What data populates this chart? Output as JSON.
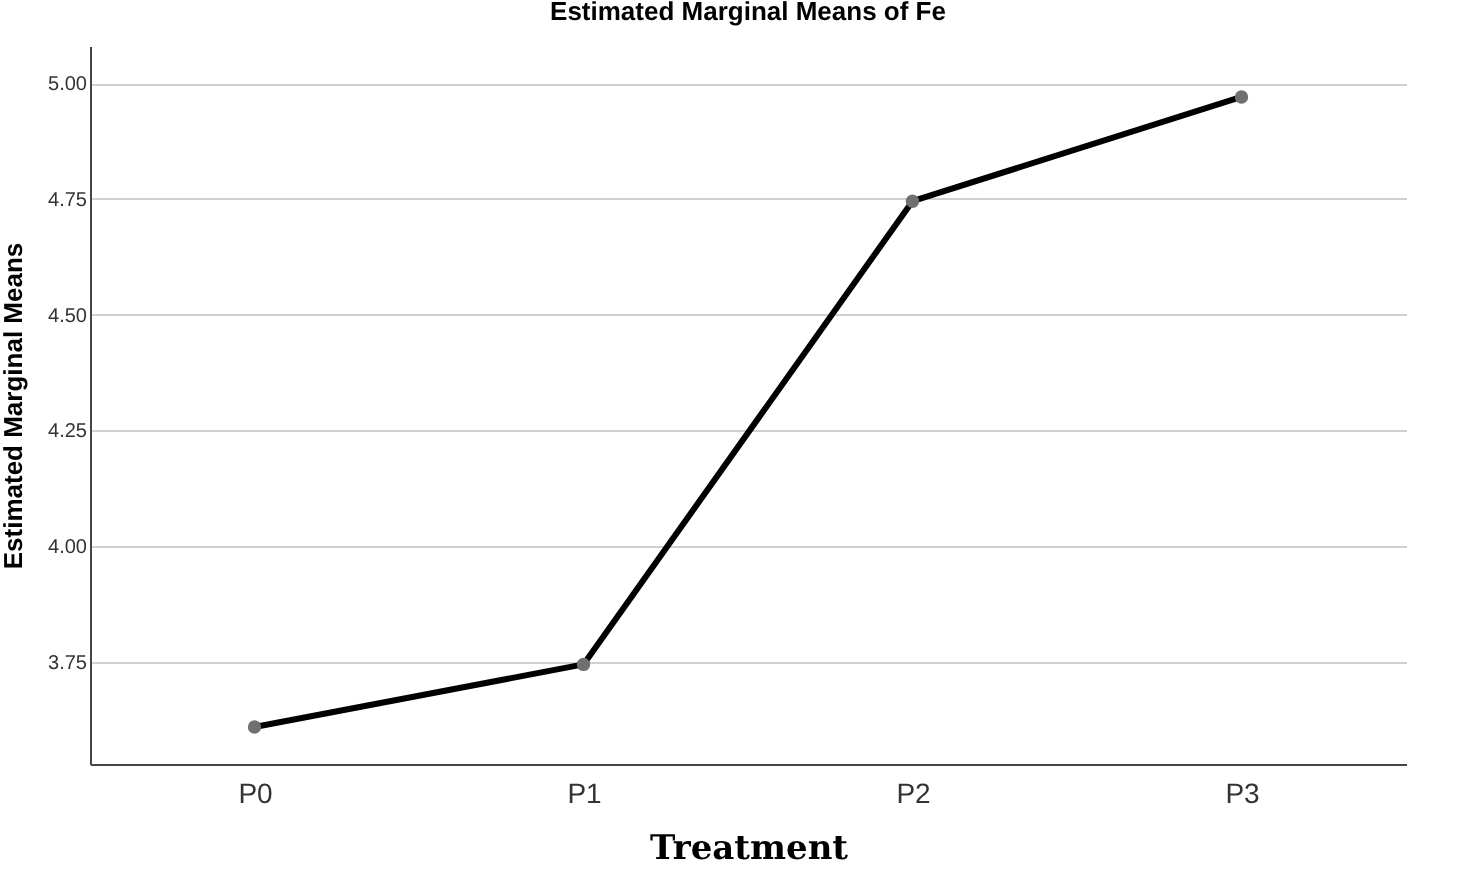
{
  "chart_data": {
    "type": "line",
    "title": "Estimated Marginal Means of Fe",
    "xlabel": "Treatment",
    "ylabel": "Estimated Marginal Means",
    "categories": [
      "P0",
      "P1",
      "P2",
      "P3"
    ],
    "series": [
      {
        "color": "#000000",
        "values": [
          3.61,
          3.745,
          4.745,
          4.97
        ]
      }
    ],
    "ylim": [
      3.53,
      5.08
    ],
    "yticks": [
      {
        "value": 3.75,
        "label": "3.75"
      },
      {
        "value": 4.0,
        "label": "4.00"
      },
      {
        "value": 4.25,
        "label": "4.25"
      },
      {
        "value": 4.5,
        "label": "4.50"
      },
      {
        "value": 4.75,
        "label": "4.75"
      },
      {
        "value": 5.0,
        "label": "5.00"
      }
    ],
    "grid": "y",
    "marker": "circle",
    "line_style": "solid",
    "legend": false
  }
}
